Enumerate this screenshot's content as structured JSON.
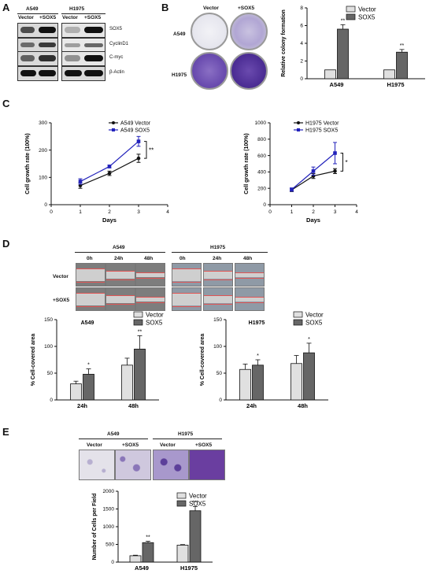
{
  "panels": {
    "A": "A",
    "B": "B",
    "C": "C",
    "D": "D",
    "E": "E"
  },
  "panelA": {
    "cell_lines": [
      "A549",
      "H1975"
    ],
    "conditions": [
      "Vector",
      "+SOX5",
      "Vector",
      "+SOX5"
    ],
    "proteins": [
      "SOX5",
      "CyclinD1",
      "C-myc",
      "β-Actin"
    ]
  },
  "panelB": {
    "col_labels": [
      "Vector",
      "+SOX5"
    ],
    "row_labels": [
      "A549",
      "H1975"
    ]
  },
  "panelD": {
    "groups": [
      "A549",
      "H1975"
    ],
    "times": [
      "0h",
      "24h",
      "48h"
    ],
    "rows": [
      "Vector",
      "+SOX5"
    ]
  },
  "panelE": {
    "groups": [
      "A549",
      "H1975"
    ],
    "conditions": [
      "Vector",
      "+SOX5"
    ]
  },
  "chart_data": [
    {
      "id": "B-colony",
      "type": "bar",
      "categories": [
        "A549",
        "H1975"
      ],
      "series": [
        {
          "name": "Vector",
          "values": [
            1,
            1
          ],
          "errors": [
            0,
            0
          ],
          "color": "#e0e0e0"
        },
        {
          "name": "SOX5",
          "values": [
            5.6,
            3.0
          ],
          "errors": [
            0.5,
            0.3
          ],
          "color": "#666666"
        }
      ],
      "ylabel": "Relative colony formation",
      "ylim": [
        0,
        8
      ],
      "yticks": [
        0,
        2,
        4,
        6,
        8
      ],
      "annotations": [
        "**",
        "**"
      ]
    },
    {
      "id": "C-A549",
      "type": "line",
      "x": [
        1,
        2,
        3
      ],
      "series": [
        {
          "name": "A549 Vector",
          "values": [
            70,
            115,
            170
          ],
          "errors": [
            10,
            8,
            15
          ],
          "color": "#111111"
        },
        {
          "name": "A549 SOX5",
          "values": [
            85,
            140,
            232
          ],
          "errors": [
            10,
            5,
            18
          ],
          "color": "#2222bb"
        }
      ],
      "xlabel": "Days",
      "ylabel": "Cell growth rate (100%)",
      "xlim": [
        0,
        4
      ],
      "ylim": [
        0,
        300
      ],
      "xticks": [
        0,
        1,
        2,
        3,
        4
      ],
      "yticks": [
        0,
        100,
        200,
        300
      ],
      "annotation": "**"
    },
    {
      "id": "C-H1975",
      "type": "line",
      "x": [
        1,
        2,
        3
      ],
      "series": [
        {
          "name": "H1975 Vector",
          "values": [
            180,
            350,
            410
          ],
          "errors": [
            20,
            30,
            30
          ],
          "color": "#111111"
        },
        {
          "name": "H1975 SOX5",
          "values": [
            185,
            410,
            630
          ],
          "errors": [
            20,
            50,
            130
          ],
          "color": "#2222bb"
        }
      ],
      "xlabel": "Days",
      "ylabel": "Cell growth rate (100%)",
      "xlim": [
        0,
        4
      ],
      "ylim": [
        0,
        1000
      ],
      "xticks": [
        0,
        1,
        2,
        3,
        4
      ],
      "yticks": [
        0,
        200,
        400,
        600,
        800,
        1000
      ],
      "annotation": "*"
    },
    {
      "id": "D-A549",
      "type": "bar",
      "title": "A549",
      "categories": [
        "24h",
        "48h"
      ],
      "series": [
        {
          "name": "Vector",
          "values": [
            30,
            65
          ],
          "errors": [
            5,
            13
          ],
          "color": "#e0e0e0"
        },
        {
          "name": "SOX5",
          "values": [
            48,
            95
          ],
          "errors": [
            10,
            25
          ],
          "color": "#666666"
        }
      ],
      "ylabel": "% Cell-covered area",
      "ylim": [
        0,
        150
      ],
      "yticks": [
        0,
        50,
        100,
        150
      ],
      "annotations": [
        "*",
        "**"
      ]
    },
    {
      "id": "D-H1975",
      "type": "bar",
      "title": "H1975",
      "categories": [
        "24h",
        "48h"
      ],
      "series": [
        {
          "name": "Vector",
          "values": [
            57,
            68
          ],
          "errors": [
            10,
            15
          ],
          "color": "#e0e0e0"
        },
        {
          "name": "SOX5",
          "values": [
            65,
            88
          ],
          "errors": [
            10,
            18
          ],
          "color": "#666666"
        }
      ],
      "ylabel": "% Cell-covered area",
      "ylim": [
        0,
        150
      ],
      "yticks": [
        0,
        50,
        100,
        150
      ],
      "annotations": [
        "*",
        "*"
      ]
    },
    {
      "id": "E-invasion",
      "type": "bar",
      "categories": [
        "A549",
        "H1975"
      ],
      "series": [
        {
          "name": "Vector",
          "values": [
            180,
            480
          ],
          "errors": [
            15,
            15
          ],
          "color": "#e0e0e0"
        },
        {
          "name": "SOX5",
          "values": [
            550,
            1450
          ],
          "errors": [
            40,
            120
          ],
          "color": "#666666"
        }
      ],
      "ylabel": "Number of Cells per Field",
      "ylim": [
        0,
        2000
      ],
      "yticks": [
        0,
        500,
        1000,
        1500,
        2000
      ],
      "annotations": [
        "**",
        "***"
      ]
    }
  ]
}
